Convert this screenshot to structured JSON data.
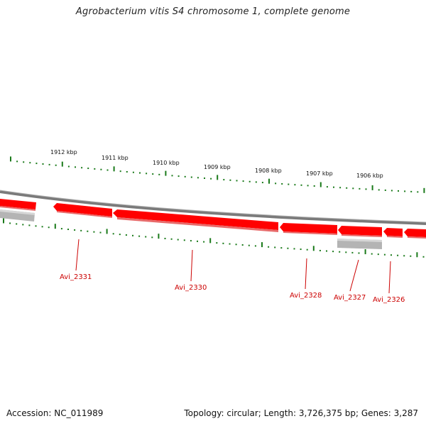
{
  "title": "Agrobacterium vitis S4 chromosome 1, complete genome",
  "footer": {
    "accession": "Accession: NC_011989",
    "topology": "Topology: circular; Length: 3,726,375 bp; Genes: 3,287"
  },
  "colors": {
    "gene_forward": "#ff0000",
    "gene_forward_shadow": "#e86a6a",
    "gene_other": "#b4b4b4",
    "backbone": "#808080",
    "ticks": "#1a7a1a",
    "gene_label": "#cc0000"
  },
  "ruler": {
    "tick_labels": [
      "1912 kbp",
      "1911 kbp",
      "1910 kbp",
      "1909 kbp",
      "1908 kbp",
      "1907 kbp",
      "1906 kbp"
    ]
  },
  "genes": [
    {
      "name": "Avi_2331",
      "label": "Avi_2331"
    },
    {
      "name": "Avi_2330",
      "label": "Avi_2330"
    },
    {
      "name": "Avi_2328",
      "label": "Avi_2328"
    },
    {
      "name": "Avi_2327",
      "label": "Avi_2327"
    },
    {
      "name": "Avi_2326",
      "label": "Avi_2326"
    }
  ]
}
